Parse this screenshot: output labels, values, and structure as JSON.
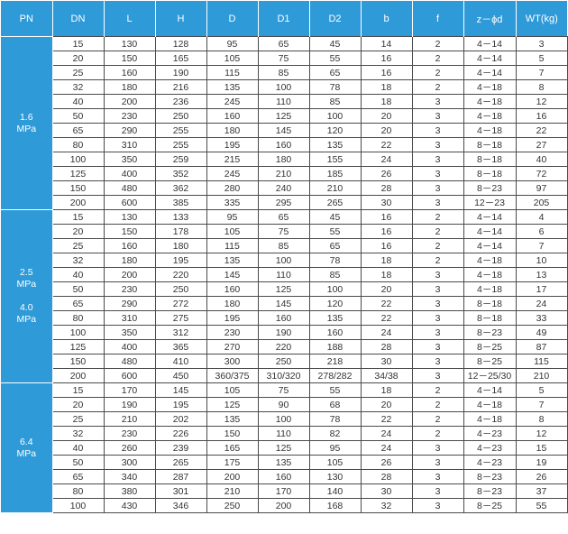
{
  "headers": [
    "PN",
    "DN",
    "L",
    "H",
    "D",
    "D1",
    "D2",
    "b",
    "f",
    "z－ϕd",
    "WT(kg)"
  ],
  "groups": [
    {
      "pn_lines": [
        "1.6",
        "MPa"
      ],
      "rows": [
        [
          "15",
          "130",
          "128",
          "95",
          "65",
          "45",
          "14",
          "2",
          "4－14",
          "3"
        ],
        [
          "20",
          "150",
          "165",
          "105",
          "75",
          "55",
          "16",
          "2",
          "4－14",
          "5"
        ],
        [
          "25",
          "160",
          "190",
          "115",
          "85",
          "65",
          "16",
          "2",
          "4－14",
          "7"
        ],
        [
          "32",
          "180",
          "216",
          "135",
          "100",
          "78",
          "18",
          "2",
          "4－18",
          "8"
        ],
        [
          "40",
          "200",
          "236",
          "245",
          "110",
          "85",
          "18",
          "3",
          "4－18",
          "12"
        ],
        [
          "50",
          "230",
          "250",
          "160",
          "125",
          "100",
          "20",
          "3",
          "4－18",
          "16"
        ],
        [
          "65",
          "290",
          "255",
          "180",
          "145",
          "120",
          "20",
          "3",
          "4－18",
          "22"
        ],
        [
          "80",
          "310",
          "255",
          "195",
          "160",
          "135",
          "22",
          "3",
          "8－18",
          "27"
        ],
        [
          "100",
          "350",
          "259",
          "215",
          "180",
          "155",
          "24",
          "3",
          "8－18",
          "40"
        ],
        [
          "125",
          "400",
          "352",
          "245",
          "210",
          "185",
          "26",
          "3",
          "8－18",
          "72"
        ],
        [
          "150",
          "480",
          "362",
          "280",
          "240",
          "210",
          "28",
          "3",
          "8－23",
          "97"
        ],
        [
          "200",
          "600",
          "385",
          "335",
          "295",
          "265",
          "30",
          "3",
          "12－23",
          "205"
        ]
      ]
    },
    {
      "pn_lines": [
        "2.5",
        "MPa",
        "",
        "4.0",
        "MPa"
      ],
      "rows": [
        [
          "15",
          "130",
          "133",
          "95",
          "65",
          "45",
          "16",
          "2",
          "4－14",
          "4"
        ],
        [
          "20",
          "150",
          "178",
          "105",
          "75",
          "55",
          "16",
          "2",
          "4－14",
          "6"
        ],
        [
          "25",
          "160",
          "180",
          "115",
          "85",
          "65",
          "16",
          "2",
          "4－14",
          "7"
        ],
        [
          "32",
          "180",
          "195",
          "135",
          "100",
          "78",
          "18",
          "2",
          "4－18",
          "10"
        ],
        [
          "40",
          "200",
          "220",
          "145",
          "110",
          "85",
          "18",
          "3",
          "4－18",
          "13"
        ],
        [
          "50",
          "230",
          "250",
          "160",
          "125",
          "100",
          "20",
          "3",
          "4－18",
          "17"
        ],
        [
          "65",
          "290",
          "272",
          "180",
          "145",
          "120",
          "22",
          "3",
          "8－18",
          "24"
        ],
        [
          "80",
          "310",
          "275",
          "195",
          "160",
          "135",
          "22",
          "3",
          "8－18",
          "33"
        ],
        [
          "100",
          "350",
          "312",
          "230",
          "190",
          "160",
          "24",
          "3",
          "8－23",
          "49"
        ],
        [
          "125",
          "400",
          "365",
          "270",
          "220",
          "188",
          "28",
          "3",
          "8－25",
          "87"
        ],
        [
          "150",
          "480",
          "410",
          "300",
          "250",
          "218",
          "30",
          "3",
          "8－25",
          "115"
        ],
        [
          "200",
          "600",
          "450",
          "360/375",
          "310/320",
          "278/282",
          "34/38",
          "3",
          "12－25/30",
          "210"
        ]
      ]
    },
    {
      "pn_lines": [
        "6.4",
        "MPa"
      ],
      "rows": [
        [
          "15",
          "170",
          "145",
          "105",
          "75",
          "55",
          "18",
          "2",
          "4－14",
          "5"
        ],
        [
          "20",
          "190",
          "195",
          "125",
          "90",
          "68",
          "20",
          "2",
          "4－18",
          "7"
        ],
        [
          "25",
          "210",
          "202",
          "135",
          "100",
          "78",
          "22",
          "2",
          "4－18",
          "8"
        ],
        [
          "32",
          "230",
          "226",
          "150",
          "110",
          "82",
          "24",
          "2",
          "4－23",
          "12"
        ],
        [
          "40",
          "260",
          "239",
          "165",
          "125",
          "95",
          "24",
          "3",
          "4－23",
          "15"
        ],
        [
          "50",
          "300",
          "265",
          "175",
          "135",
          "105",
          "26",
          "3",
          "4－23",
          "19"
        ],
        [
          "65",
          "340",
          "287",
          "200",
          "160",
          "130",
          "28",
          "3",
          "8－23",
          "26"
        ],
        [
          "80",
          "380",
          "301",
          "210",
          "170",
          "140",
          "30",
          "3",
          "8－23",
          "37"
        ],
        [
          "100",
          "430",
          "346",
          "250",
          "200",
          "168",
          "32",
          "3",
          "8－25",
          "55"
        ]
      ]
    }
  ]
}
